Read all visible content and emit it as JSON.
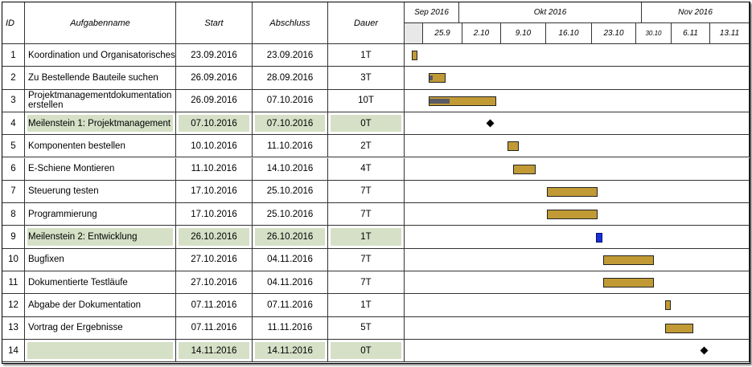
{
  "table": {
    "headers": {
      "id": "ID",
      "name": "Aufgabenname",
      "start": "Start",
      "end": "Abschluss",
      "duration": "Dauer"
    },
    "tasks": [
      {
        "id": "1",
        "name": "Koordination und Organisatorisches",
        "start": "23.09.2016",
        "end": "23.09.2016",
        "duration": "1T",
        "milestone": false
      },
      {
        "id": "2",
        "name": "Zu Bestellende Bauteile suchen",
        "start": "26.09.2016",
        "end": "28.09.2016",
        "duration": "3T",
        "milestone": false
      },
      {
        "id": "3",
        "name": "Projektmanagementdokumentation erstellen",
        "start": "26.09.2016",
        "end": "07.10.2016",
        "duration": "10T",
        "milestone": false
      },
      {
        "id": "4",
        "name": "Meilenstein 1: Projektmanagement",
        "start": "07.10.2016",
        "end": "07.10.2016",
        "duration": "0T",
        "milestone": true
      },
      {
        "id": "5",
        "name": "Komponenten bestellen",
        "start": "10.10.2016",
        "end": "11.10.2016",
        "duration": "2T",
        "milestone": false
      },
      {
        "id": "6",
        "name": "E-Schiene Montieren",
        "start": "11.10.2016",
        "end": "14.10.2016",
        "duration": "4T",
        "milestone": false
      },
      {
        "id": "7",
        "name": "Steuerung testen",
        "start": "17.10.2016",
        "end": "25.10.2016",
        "duration": "7T",
        "milestone": false
      },
      {
        "id": "8",
        "name": "Programmierung",
        "start": "17.10.2016",
        "end": "25.10.2016",
        "duration": "7T",
        "milestone": false
      },
      {
        "id": "9",
        "name": "Meilenstein 2: Entwicklung",
        "start": "26.10.2016",
        "end": "26.10.2016",
        "duration": "1T",
        "milestone": true
      },
      {
        "id": "10",
        "name": "Bugfixen",
        "start": "27.10.2016",
        "end": "04.11.2016",
        "duration": "7T",
        "milestone": false
      },
      {
        "id": "11",
        "name": "Dokumentierte Testläufe",
        "start": "27.10.2016",
        "end": "04.11.2016",
        "duration": "7T",
        "milestone": false
      },
      {
        "id": "12",
        "name": "Abgabe der Dokumentation",
        "start": "07.11.2016",
        "end": "07.11.2016",
        "duration": "1T",
        "milestone": false
      },
      {
        "id": "13",
        "name": "Vortrag der Ergebnisse",
        "start": "07.11.2016",
        "end": "11.11.2016",
        "duration": "5T",
        "milestone": false
      },
      {
        "id": "14",
        "name": "",
        "start": "14.11.2016",
        "end": "14.11.2016",
        "duration": "0T",
        "milestone": true
      }
    ]
  },
  "timeline": {
    "months": [
      "Sep 2016",
      "Okt 2016",
      "Nov 2016"
    ],
    "weeks": [
      "25.9",
      "2.10",
      "9.10",
      "16.10",
      "23.10",
      "30.10",
      "6.11",
      "13.11"
    ],
    "colors": {
      "bar": "#c19a36",
      "progress": "#5a5a66",
      "milestone_row": "#d5e0c7",
      "milestone_diamond": "#000000",
      "highlight_bar": "#1a2fd6"
    },
    "bars": [
      {
        "task": "1",
        "kind": "bar",
        "start": "2016-09-23",
        "end": "2016-09-23",
        "progress": 0.0
      },
      {
        "task": "2",
        "kind": "bar",
        "start": "2016-09-26",
        "end": "2016-09-28",
        "progress": 0.2
      },
      {
        "task": "3",
        "kind": "bar",
        "start": "2016-09-26",
        "end": "2016-10-07",
        "progress": 0.3
      },
      {
        "task": "4",
        "kind": "diamond",
        "start": "2016-10-07",
        "end": "2016-10-07",
        "progress": 0
      },
      {
        "task": "5",
        "kind": "bar",
        "start": "2016-10-10",
        "end": "2016-10-11",
        "progress": 0
      },
      {
        "task": "6",
        "kind": "bar",
        "start": "2016-10-11",
        "end": "2016-10-14",
        "progress": 0
      },
      {
        "task": "7",
        "kind": "bar",
        "start": "2016-10-17",
        "end": "2016-10-25",
        "progress": 0
      },
      {
        "task": "8",
        "kind": "bar",
        "start": "2016-10-17",
        "end": "2016-10-25",
        "progress": 0
      },
      {
        "task": "9",
        "kind": "blue",
        "start": "2016-10-26",
        "end": "2016-10-26",
        "progress": 0
      },
      {
        "task": "10",
        "kind": "bar",
        "start": "2016-10-27",
        "end": "2016-11-04",
        "progress": 0
      },
      {
        "task": "11",
        "kind": "bar",
        "start": "2016-10-27",
        "end": "2016-11-04",
        "progress": 0
      },
      {
        "task": "12",
        "kind": "bar",
        "start": "2016-11-07",
        "end": "2016-11-07",
        "progress": 0
      },
      {
        "task": "13",
        "kind": "bar",
        "start": "2016-11-07",
        "end": "2016-11-11",
        "progress": 0
      },
      {
        "task": "14",
        "kind": "diamond",
        "start": "2016-11-14",
        "end": "2016-11-14",
        "progress": 0
      }
    ]
  }
}
